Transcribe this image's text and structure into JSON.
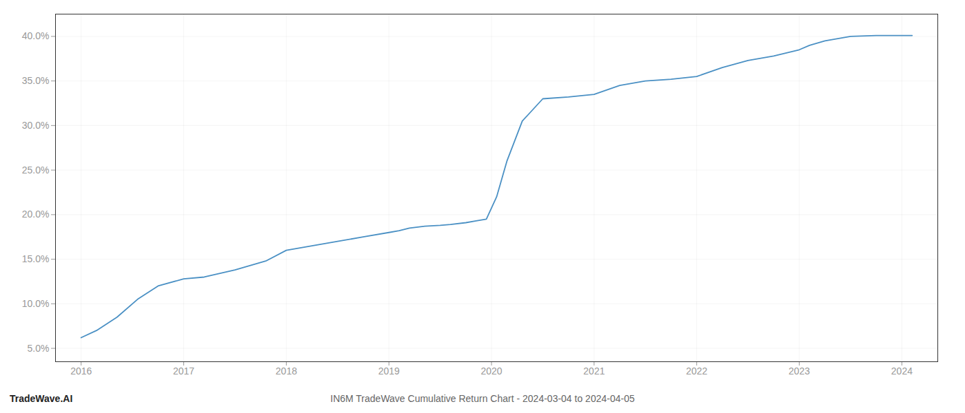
{
  "chart_data": {
    "type": "line",
    "title": "IN6M TradeWave Cumulative Return Chart - 2024-03-04 to 2024-04-05",
    "annotations": [
      "TradeWave.AI"
    ],
    "x": [
      2016.0,
      2016.15,
      2016.35,
      2016.55,
      2016.75,
      2017.0,
      2017.2,
      2017.5,
      2017.8,
      2018.0,
      2018.25,
      2018.5,
      2018.75,
      2019.0,
      2019.1,
      2019.2,
      2019.35,
      2019.5,
      2019.6,
      2019.75,
      2019.85,
      2019.95,
      2020.05,
      2020.15,
      2020.3,
      2020.5,
      2020.75,
      2021.0,
      2021.25,
      2021.5,
      2021.75,
      2022.0,
      2022.25,
      2022.5,
      2022.75,
      2023.0,
      2023.1,
      2023.25,
      2023.5,
      2023.75,
      2024.0,
      2024.1
    ],
    "values": [
      6.2,
      7.0,
      8.5,
      10.5,
      12.0,
      12.8,
      13.0,
      13.8,
      14.8,
      16.0,
      16.5,
      17.0,
      17.5,
      18.0,
      18.2,
      18.5,
      18.7,
      18.8,
      18.9,
      19.1,
      19.3,
      19.5,
      22.0,
      26.0,
      30.5,
      33.0,
      33.2,
      33.5,
      34.5,
      35.0,
      35.2,
      35.5,
      36.5,
      37.3,
      37.8,
      38.5,
      39.0,
      39.5,
      40.0,
      40.1,
      40.1,
      40.1
    ],
    "color": "#4a90c4",
    "xlim": [
      2015.75,
      2024.35
    ],
    "ylim": [
      3.5,
      42.5
    ],
    "xticks": [
      2016,
      2017,
      2018,
      2019,
      2020,
      2021,
      2022,
      2023,
      2024
    ],
    "yticks": [
      {
        "value": 5.0,
        "label": "5.0%"
      },
      {
        "value": 10.0,
        "label": "10.0%"
      },
      {
        "value": 15.0,
        "label": "15.0%"
      },
      {
        "value": 20.0,
        "label": "20.0%"
      },
      {
        "value": 25.0,
        "label": "25.0%"
      },
      {
        "value": 30.0,
        "label": "30.0%"
      },
      {
        "value": 35.0,
        "label": "35.0%"
      },
      {
        "value": 40.0,
        "label": "40.0%"
      }
    ],
    "grid": true
  }
}
